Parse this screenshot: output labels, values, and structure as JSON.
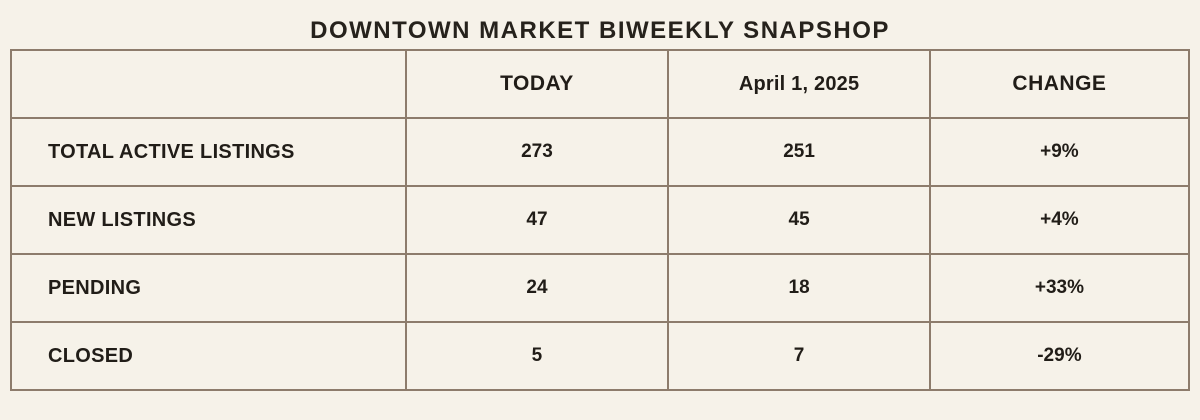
{
  "page": {
    "title": "DOWNTOWN MARKET BIWEEKLY SNAPSHOP"
  },
  "table": {
    "columns": {
      "corner": "",
      "today": "TODAY",
      "date": "April 1, 2025",
      "change": "CHANGE"
    },
    "rows": [
      {
        "label": "TOTAL ACTIVE LISTINGS",
        "today": "273",
        "previous": "251",
        "change": "+9%"
      },
      {
        "label": "NEW LISTINGS",
        "today": "47",
        "previous": "45",
        "change": "+4%"
      },
      {
        "label": "PENDING",
        "today": "24",
        "previous": "18",
        "change": "+33%"
      },
      {
        "label": "CLOSED",
        "today": "5",
        "previous": "7",
        "change": "-29%"
      }
    ],
    "colors": {
      "background": "#f6f2e9",
      "corner_cell": "#856a58",
      "border": "#8d7c6c",
      "text": "#211d18"
    }
  }
}
